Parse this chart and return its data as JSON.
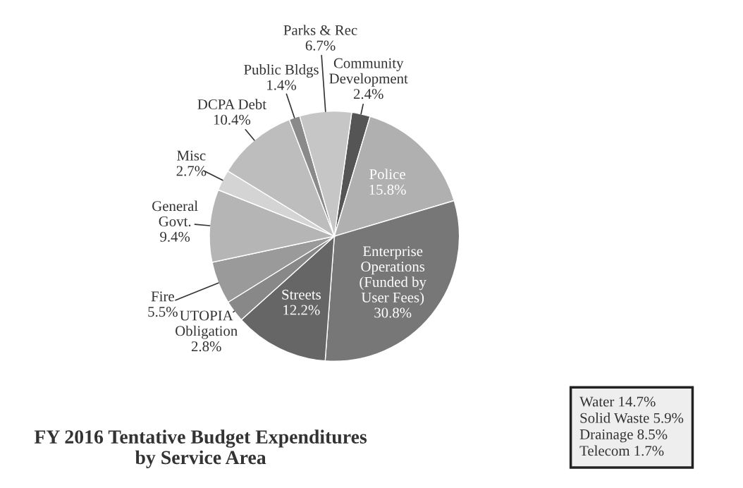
{
  "chart_data": {
    "type": "pie",
    "title": "FY 2016 Tentative Budget Expenditures\nby Service Area",
    "categories": [
      "Community\nDevelopment",
      "Police",
      "Enterprise\nOperations\n(Funded by\nUser Fees)",
      "Streets",
      "UTOPIA\nObligation",
      "Fire",
      "General\nGovt.",
      "Misc",
      "DCPA Debt",
      "Public Bldgs",
      "Parks & Rec"
    ],
    "values": [
      2.4,
      15.8,
      30.8,
      12.2,
      2.8,
      5.5,
      9.4,
      2.7,
      10.4,
      1.4,
      6.7
    ],
    "value_labels": [
      "2.4%",
      "15.8%",
      "30.8%",
      "12.2%",
      "2.8%",
      "5.5%",
      "9.4%",
      "2.7%",
      "10.4%",
      "1.4%",
      "6.7%"
    ],
    "colors": [
      "#555555",
      "#b0b0b0",
      "#777777",
      "#666666",
      "#888888",
      "#9a9a9a",
      "#b5b5b5",
      "#d4d4d4",
      "#bdbdbd",
      "#8a8a8a",
      "#c6c6c6"
    ],
    "annotations": [
      "Water 14.7%",
      "Solid Waste 5.9%",
      "Drainage 8.5%",
      "Telecom 1.7%"
    ]
  }
}
